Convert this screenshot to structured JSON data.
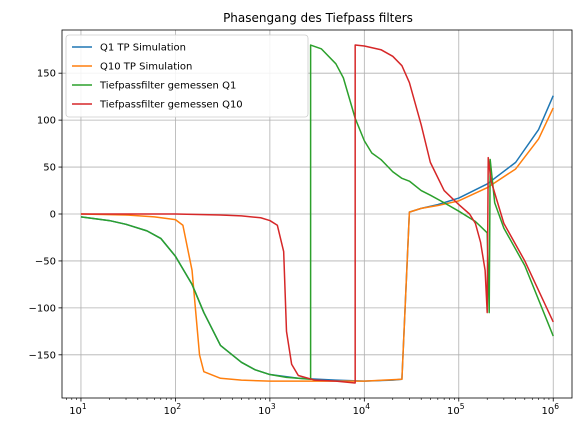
{
  "chart_data": {
    "type": "line",
    "title": "Phasengang des Tiefpass filters",
    "xlabel": "",
    "ylabel": "",
    "xscale": "log",
    "xlim": [
      6.3,
      1580000
    ],
    "ylim": [
      -196,
      196
    ],
    "grid": true,
    "legend_position": "top-left",
    "x_ticks": [
      {
        "value": 10,
        "base": "10",
        "exp": "1"
      },
      {
        "value": 100,
        "base": "10",
        "exp": "2"
      },
      {
        "value": 1000,
        "base": "10",
        "exp": "3"
      },
      {
        "value": 10000,
        "base": "10",
        "exp": "4"
      },
      {
        "value": 100000,
        "base": "10",
        "exp": "5"
      },
      {
        "value": 1000000,
        "base": "10",
        "exp": "6"
      }
    ],
    "y_ticks": [
      {
        "value": -150,
        "label": "−150"
      },
      {
        "value": -100,
        "label": "−100"
      },
      {
        "value": -50,
        "label": "−50"
      },
      {
        "value": 0,
        "label": "0"
      },
      {
        "value": 50,
        "label": "50"
      },
      {
        "value": 100,
        "label": "100"
      },
      {
        "value": 150,
        "label": "150"
      }
    ],
    "series": [
      {
        "name": "Q1 TP Simulation",
        "color": "#1f77b4",
        "points": [
          [
            10,
            -3
          ],
          [
            20,
            -7
          ],
          [
            30,
            -11
          ],
          [
            50,
            -18
          ],
          [
            70,
            -26
          ],
          [
            100,
            -45
          ],
          [
            150,
            -75
          ],
          [
            200,
            -105
          ],
          [
            300,
            -140
          ],
          [
            500,
            -158
          ],
          [
            700,
            -166
          ],
          [
            1000,
            -171
          ],
          [
            2000,
            -175
          ],
          [
            5000,
            -177
          ],
          [
            10000,
            -178
          ],
          [
            20000,
            -177
          ],
          [
            25000,
            -176
          ],
          [
            30000,
            2
          ],
          [
            40000,
            6
          ],
          [
            60000,
            10
          ],
          [
            100000,
            17
          ],
          [
            200000,
            32
          ],
          [
            400000,
            55
          ],
          [
            700000,
            90
          ],
          [
            1000000,
            126
          ]
        ]
      },
      {
        "name": "Q10 TP Simulation",
        "color": "#ff7f0e",
        "points": [
          [
            10,
            0
          ],
          [
            30,
            -1
          ],
          [
            60,
            -3
          ],
          [
            100,
            -6
          ],
          [
            120,
            -12
          ],
          [
            150,
            -60
          ],
          [
            180,
            -150
          ],
          [
            200,
            -168
          ],
          [
            300,
            -175
          ],
          [
            500,
            -177
          ],
          [
            1000,
            -178
          ],
          [
            3000,
            -178
          ],
          [
            10000,
            -178
          ],
          [
            25000,
            -176
          ],
          [
            30000,
            2
          ],
          [
            40000,
            6
          ],
          [
            60000,
            9
          ],
          [
            100000,
            14
          ],
          [
            200000,
            28
          ],
          [
            400000,
            48
          ],
          [
            700000,
            80
          ],
          [
            1000000,
            113
          ]
        ]
      },
      {
        "name": "Tiefpassfilter gemessen Q1",
        "color": "#2ca02c",
        "points": [
          [
            10,
            -3
          ],
          [
            20,
            -7
          ],
          [
            30,
            -11
          ],
          [
            50,
            -18
          ],
          [
            70,
            -26
          ],
          [
            100,
            -45
          ],
          [
            150,
            -75
          ],
          [
            200,
            -105
          ],
          [
            300,
            -140
          ],
          [
            500,
            -158
          ],
          [
            700,
            -166
          ],
          [
            1000,
            -171
          ],
          [
            1500,
            -174
          ],
          [
            2000,
            -175
          ],
          [
            2700,
            -176
          ],
          [
            2700,
            180
          ],
          [
            3500,
            176
          ],
          [
            5000,
            160
          ],
          [
            6000,
            145
          ],
          [
            8000,
            102
          ],
          [
            10000,
            78
          ],
          [
            12000,
            65
          ],
          [
            15000,
            58
          ],
          [
            20000,
            45
          ],
          [
            25000,
            38
          ],
          [
            30000,
            35
          ],
          [
            40000,
            25
          ],
          [
            50000,
            20
          ],
          [
            70000,
            12
          ],
          [
            100000,
            3
          ],
          [
            150000,
            -8
          ],
          [
            200000,
            -20
          ],
          [
            210000,
            -105
          ],
          [
            215000,
            58
          ],
          [
            240000,
            12
          ],
          [
            300000,
            -15
          ],
          [
            500000,
            -55
          ],
          [
            1000000,
            -130
          ]
        ]
      },
      {
        "name": "Tiefpassfilter gemessen Q10",
        "color": "#d62728",
        "points": [
          [
            10,
            0
          ],
          [
            100,
            0
          ],
          [
            300,
            -1
          ],
          [
            500,
            -2
          ],
          [
            800,
            -4
          ],
          [
            1000,
            -7
          ],
          [
            1200,
            -12
          ],
          [
            1400,
            -40
          ],
          [
            1500,
            -125
          ],
          [
            1700,
            -160
          ],
          [
            2000,
            -172
          ],
          [
            3000,
            -177
          ],
          [
            5000,
            -178
          ],
          [
            8000,
            -180
          ],
          [
            8000,
            180
          ],
          [
            10000,
            179
          ],
          [
            15000,
            175
          ],
          [
            20000,
            168
          ],
          [
            25000,
            158
          ],
          [
            30000,
            140
          ],
          [
            40000,
            95
          ],
          [
            50000,
            55
          ],
          [
            70000,
            25
          ],
          [
            100000,
            10
          ],
          [
            130000,
            0
          ],
          [
            150000,
            -10
          ],
          [
            170000,
            -30
          ],
          [
            190000,
            -60
          ],
          [
            200000,
            -105
          ],
          [
            205000,
            60
          ],
          [
            220000,
            35
          ],
          [
            300000,
            -10
          ],
          [
            500000,
            -50
          ],
          [
            1000000,
            -115
          ]
        ]
      }
    ]
  }
}
